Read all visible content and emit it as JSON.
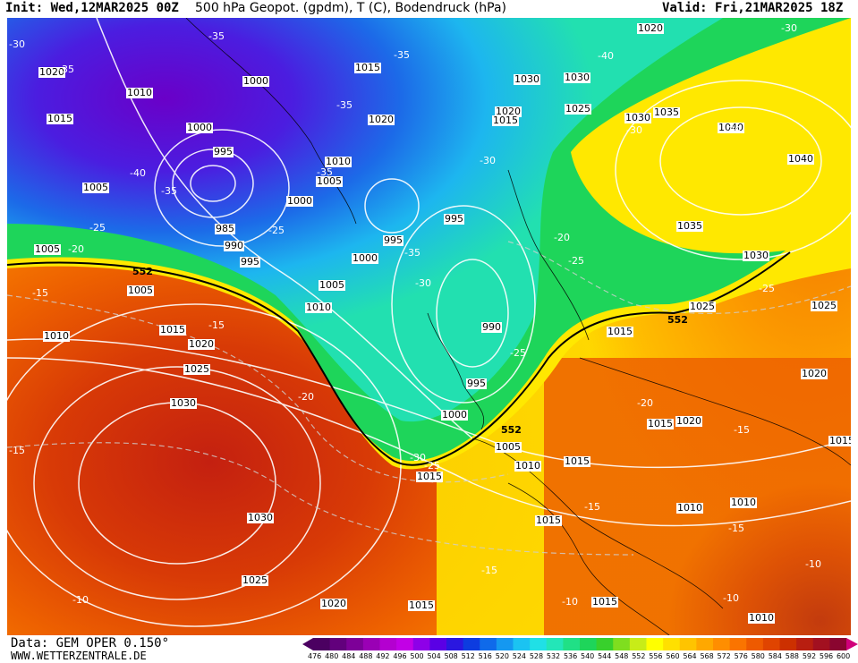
{
  "header": {
    "init_text": "Init: Wed,12MAR2025 00Z",
    "product_text": "500 hPa Geopot. (gpdm), T (C), Bodendruck (hPa)",
    "valid_text": "Valid: Fri,21MAR2025 18Z"
  },
  "footer": {
    "data_text": "Data: GEM OPER 0.150°",
    "site_text": "WWW.WETTERZENTRALE.DE"
  },
  "scale": {
    "labels": [
      "476",
      "480",
      "484",
      "488",
      "492",
      "496",
      "500",
      "504",
      "508",
      "512",
      "516",
      "520",
      "524",
      "528",
      "532",
      "536",
      "540",
      "544",
      "548",
      "552",
      "556",
      "560",
      "564",
      "568",
      "572",
      "576",
      "580",
      "584",
      "588",
      "592",
      "596",
      "600"
    ],
    "colors": [
      "#4b0061",
      "#62007c",
      "#7d0098",
      "#9a00b5",
      "#b400d0",
      "#c200e6",
      "#8e00e8",
      "#5a00e5",
      "#2a17e0",
      "#0d3ce0",
      "#0f6aea",
      "#1598f0",
      "#1bc3f2",
      "#20e0e6",
      "#23e6b8",
      "#20e086",
      "#1ed55a",
      "#38d02c",
      "#7fde1f",
      "#c8ec18",
      "#ffff00",
      "#ffe000",
      "#ffc400",
      "#ffa800",
      "#ff8e00",
      "#fa7400",
      "#ee5a00",
      "#e04400",
      "#cc3000",
      "#b81e10",
      "#a21020",
      "#8a0530"
    ]
  },
  "map": {
    "contour_552_label": "552",
    "isobars": [
      "1020",
      "1015",
      "1010",
      "1005",
      "1000",
      "995",
      "990",
      "985",
      "1025",
      "1030",
      "1035",
      "1040"
    ],
    "temperature_labels": [
      "-35",
      "-30",
      "-25",
      "-20",
      "-15",
      "-10",
      "-40"
    ]
  }
}
